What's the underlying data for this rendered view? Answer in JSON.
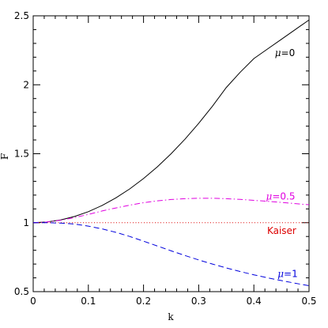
{
  "chart_data": {
    "type": "line",
    "xlabel": "k",
    "ylabel": "F",
    "xlim": [
      0,
      0.5
    ],
    "ylim": [
      0.5,
      2.5
    ],
    "x_ticks": [
      "0",
      "0.1",
      "0.2",
      "0.3",
      "0.4",
      "0.5"
    ],
    "y_ticks": [
      "0.5",
      "1",
      "1.5",
      "2",
      "2.5"
    ],
    "grid": false,
    "x": [
      0,
      0.025,
      0.05,
      0.075,
      0.1,
      0.125,
      0.15,
      0.175,
      0.2,
      0.225,
      0.25,
      0.275,
      0.3,
      0.325,
      0.35,
      0.375,
      0.4,
      0.425,
      0.45,
      0.475,
      0.5
    ],
    "series": [
      {
        "name": "μ=0",
        "color": "#000000",
        "dash": "solid",
        "label_prefix": "μ",
        "label_suffix": "=0",
        "values": [
          1.0,
          1.005,
          1.02,
          1.045,
          1.08,
          1.125,
          1.18,
          1.245,
          1.32,
          1.405,
          1.5,
          1.605,
          1.72,
          1.845,
          1.98,
          2.09,
          2.19,
          2.26,
          2.33,
          2.4,
          2.47
        ]
      },
      {
        "name": "μ=0.5",
        "color": "#e000e0",
        "dash": "dashdot",
        "label_prefix": "μ",
        "label_suffix": "=0.5",
        "values": [
          1.0,
          1.005,
          1.018,
          1.037,
          1.06,
          1.085,
          1.107,
          1.127,
          1.145,
          1.158,
          1.168,
          1.174,
          1.177,
          1.177,
          1.174,
          1.169,
          1.162,
          1.155,
          1.147,
          1.138,
          1.13
        ]
      },
      {
        "name": "Kaiser",
        "color": "#dd0000",
        "dash": "dotted",
        "label_prefix": "",
        "label_suffix": "Kaiser",
        "values": [
          1,
          1,
          1,
          1,
          1,
          1,
          1,
          1,
          1,
          1,
          1,
          1,
          1,
          1,
          1,
          1,
          1,
          1,
          1,
          1,
          1
        ]
      },
      {
        "name": "μ=1",
        "color": "#0000dd",
        "dash": "dashed",
        "label_prefix": "μ",
        "label_suffix": "=1",
        "values": [
          1.0,
          1.0,
          0.997,
          0.99,
          0.975,
          0.955,
          0.93,
          0.9,
          0.866,
          0.831,
          0.796,
          0.762,
          0.73,
          0.7,
          0.672,
          0.646,
          0.622,
          0.6,
          0.58,
          0.561,
          0.543
        ]
      }
    ]
  }
}
